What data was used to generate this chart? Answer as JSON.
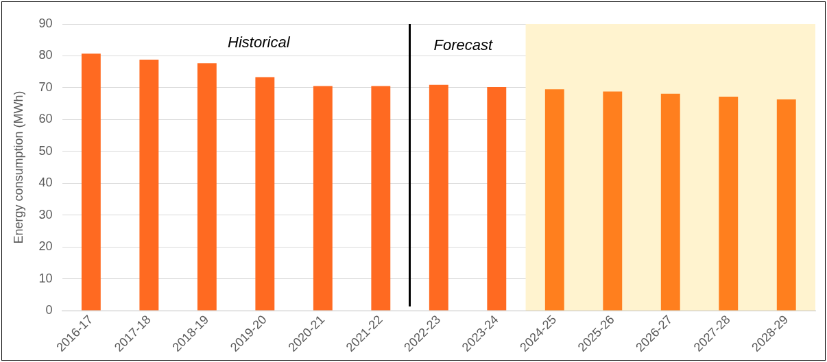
{
  "chart_data": {
    "type": "bar",
    "ylabel": "Energy consumption (MWh)",
    "categories": [
      "2016-17",
      "2017-18",
      "2018-19",
      "2019-20",
      "2020-21",
      "2021-22",
      "2022-23",
      "2023-24",
      "2024-25",
      "2025-26",
      "2026-27",
      "2027-28",
      "2028-29"
    ],
    "values": [
      80.7,
      78.8,
      77.7,
      73.3,
      70.5,
      70.5,
      70.9,
      70.2,
      69.5,
      68.8,
      68.1,
      67.2,
      66.3
    ],
    "colors": [
      "#ff6a21",
      "#ff6a21",
      "#ff6a21",
      "#ff6a21",
      "#ff6a21",
      "#ff6a21",
      "#ff6a21",
      "#ff6a21",
      "#ff7f1e",
      "#ff7f1e",
      "#ff7f1e",
      "#ff7f1e",
      "#ff7f1e"
    ],
    "ylim": [
      0,
      90
    ],
    "yticks": [
      0,
      10,
      20,
      30,
      40,
      50,
      60,
      70,
      80,
      90
    ],
    "grid": "y",
    "legend": false,
    "bands": [
      {
        "axis": "x",
        "from": "2024-25",
        "to": "2028-29",
        "color": "#fff3cf"
      }
    ],
    "annotations": [
      "Historical",
      "Forecast"
    ]
  }
}
